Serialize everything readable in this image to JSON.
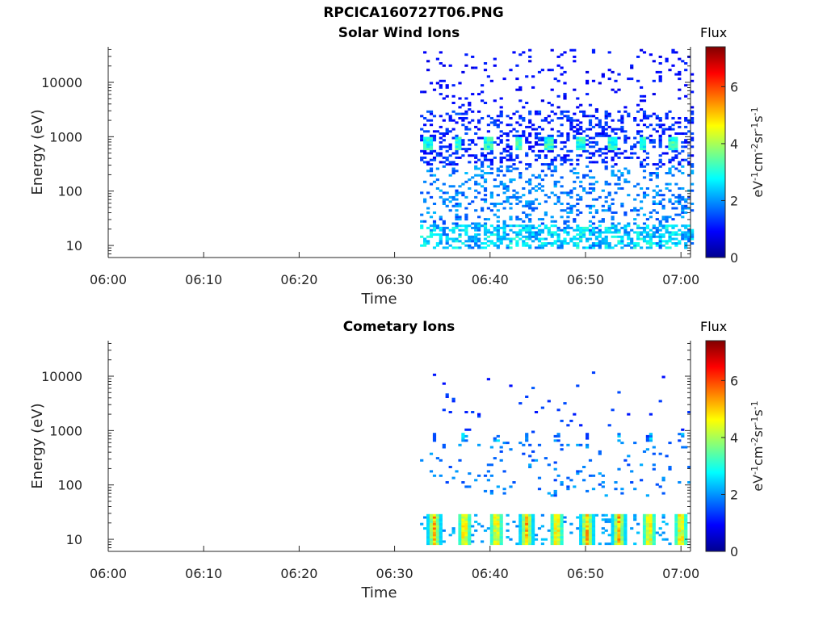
{
  "figure": {
    "title": "RPCICA160727T06.PNG"
  },
  "colors": {
    "background": "#ffffff",
    "axis": "#262626",
    "colormap": "jet"
  },
  "chart_data": [
    {
      "type": "heatmap",
      "title": "Solar Wind Ions",
      "xlabel": "Time",
      "ylabel": "Energy (eV)",
      "xticks": [
        "06:00",
        "06:10",
        "06:20",
        "06:30",
        "06:40",
        "06:50",
        "07:00"
      ],
      "xlim": [
        "06:00",
        "07:01"
      ],
      "yscale": "log",
      "ylim": [
        6,
        45000
      ],
      "yticks": [
        10,
        100,
        1000,
        10000
      ],
      "ytick_labels": [
        "10",
        "100",
        "1000",
        "10000"
      ],
      "data_start": "06:32:40",
      "data_end": "07:01",
      "colorbar": {
        "title": "Flux",
        "label": "eV-1cm-2sr-1s-1",
        "range": [
          0,
          7.4
        ],
        "ticks": [
          0,
          2,
          4,
          6
        ],
        "tick_labels": [
          "0",
          "2",
          "4",
          "6"
        ]
      },
      "bursts_near_800eV": [
        "06:33:20",
        "06:36:30",
        "06:39:40",
        "06:42:50",
        "06:46:00",
        "06:49:20",
        "06:52:40",
        "06:55:50",
        "06:59:00"
      ],
      "peak_flux_at_800eV": 3.5,
      "low_energy_band_eV": [
        9,
        25
      ],
      "low_energy_flux": 2.5
    },
    {
      "type": "heatmap",
      "title": "Cometary Ions",
      "xlabel": "Time",
      "ylabel": "Energy (eV)",
      "xticks": [
        "06:00",
        "06:10",
        "06:20",
        "06:30",
        "06:40",
        "06:50",
        "07:00"
      ],
      "xlim": [
        "06:00",
        "07:01"
      ],
      "yscale": "log",
      "ylim": [
        6,
        45000
      ],
      "yticks": [
        10,
        100,
        1000,
        10000
      ],
      "ytick_labels": [
        "10",
        "100",
        "1000",
        "10000"
      ],
      "data_start": "06:32:40",
      "data_end": "07:01",
      "colorbar": {
        "title": "Flux",
        "label": "eV-1cm-2sr-1s-1",
        "range": [
          0,
          7.4
        ],
        "ticks": [
          0,
          2,
          4,
          6
        ],
        "tick_labels": [
          "0",
          "2",
          "4",
          "6"
        ]
      },
      "bursts_low_energy": [
        "06:34:00",
        "06:37:10",
        "06:40:30",
        "06:43:40",
        "06:46:50",
        "06:50:00",
        "06:53:20",
        "06:56:30",
        "06:59:50"
      ],
      "peak_flux_low_energy": 5.8,
      "low_energy_band_eV": [
        8,
        30
      ],
      "sparse_band_eV": [
        600,
        900
      ]
    }
  ]
}
